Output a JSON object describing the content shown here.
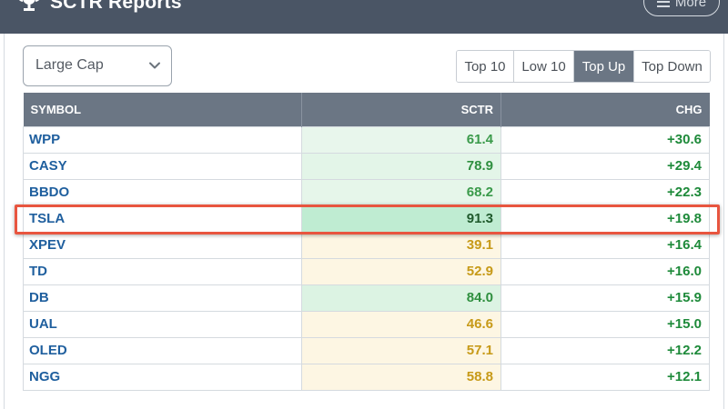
{
  "header": {
    "title": "SCTR Reports",
    "more_label": "More"
  },
  "controls": {
    "universe_selected": "Large Cap",
    "tabs": [
      {
        "label": "Top 10",
        "active": false
      },
      {
        "label": "Low 10",
        "active": false
      },
      {
        "label": "Top Up",
        "active": true
      },
      {
        "label": "Top Down",
        "active": false
      }
    ]
  },
  "table": {
    "columns": [
      "SYMBOL",
      "SCTR",
      "CHG"
    ],
    "rows": [
      {
        "symbol": "WPP",
        "sctr": "61.4",
        "chg": "+30.6",
        "sctr_color": "#3a9a4a",
        "sctr_bg": "#e8f6ec"
      },
      {
        "symbol": "CASY",
        "sctr": "78.9",
        "chg": "+29.4",
        "sctr_color": "#2f8f3f",
        "sctr_bg": "#e3f5e8"
      },
      {
        "symbol": "BBDO",
        "sctr": "68.2",
        "chg": "+22.3",
        "sctr_color": "#3a9a4a",
        "sctr_bg": "#e6f6ea"
      },
      {
        "symbol": "TSLA",
        "sctr": "91.3",
        "chg": "+19.8",
        "sctr_color": "#1f5a2c",
        "sctr_bg": "#bfecd2"
      },
      {
        "symbol": "XPEV",
        "sctr": "39.1",
        "chg": "+16.4",
        "sctr_color": "#c79a18",
        "sctr_bg": "#fdf6e3"
      },
      {
        "symbol": "TD",
        "sctr": "52.9",
        "chg": "+16.0",
        "sctr_color": "#c79a18",
        "sctr_bg": "#fdf6e3"
      },
      {
        "symbol": "DB",
        "sctr": "84.0",
        "chg": "+15.9",
        "sctr_color": "#2f8f3f",
        "sctr_bg": "#dcf3e3"
      },
      {
        "symbol": "UAL",
        "sctr": "46.6",
        "chg": "+15.0",
        "sctr_color": "#c79a18",
        "sctr_bg": "#fdf6e3"
      },
      {
        "symbol": "OLED",
        "sctr": "57.1",
        "chg": "+12.2",
        "sctr_color": "#c79a18",
        "sctr_bg": "#fdf6e3"
      },
      {
        "symbol": "NGG",
        "sctr": "58.8",
        "chg": "+12.1",
        "sctr_color": "#c79a18",
        "sctr_bg": "#fdf6e3"
      }
    ],
    "highlighted_symbol": "TSLA"
  },
  "colors": {
    "header_bg": "#4a5565",
    "table_header_bg": "#6b7684",
    "symbol_link": "#1f5f9e",
    "positive_change": "#1e8a3a",
    "highlight_border": "#e8553f"
  },
  "icons": {
    "title_icon": "trophy-icon",
    "more_icon": "hamburger-menu-icon",
    "dropdown_icon": "chevron-down-icon"
  }
}
